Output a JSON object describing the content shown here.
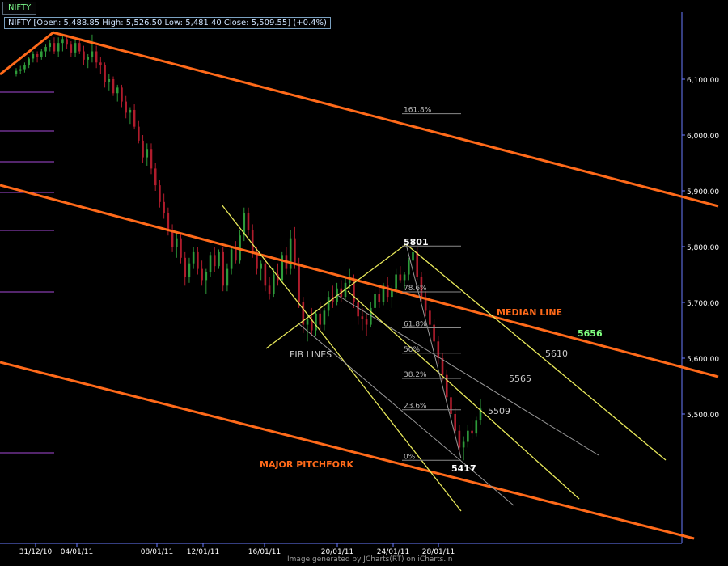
{
  "tab": {
    "label": "NIFTY"
  },
  "infobox": {
    "text": "NIFTY [Open: 5,488.85  High: 5,526.50  Low: 5,481.40  Close: 5,509.55] (+0.4%)"
  },
  "footer": "Image generated by JCharts(RT) on iCharts.in",
  "colors": {
    "background": "#000000",
    "up_candle": "#2e9b3a",
    "down_candle": "#b01c2c",
    "pitchfork": "#ff6a1a",
    "fib_channel": "#e8e85a",
    "fib_inner": "#9a9a9a",
    "grid_axis": "#6a7cff",
    "level_marks": "#a64ad8"
  },
  "chart_data": {
    "type": "candlestick",
    "symbol": "NIFTY",
    "yaxis": {
      "ticks": [
        "6,100.00",
        "6,000.00",
        "5,900.00",
        "5,800.00",
        "5,700.00",
        "5,600.00",
        "5,500.00"
      ],
      "tick_values": [
        6100,
        6000,
        5900,
        5800,
        5700,
        5600,
        5500
      ],
      "range": [
        5260,
        6180
      ]
    },
    "xaxis": {
      "ticks": [
        "31/12/10",
        "04/01/11",
        "08/01/11",
        "12/01/11",
        "16/01/11",
        "20/01/11",
        "24/01/11",
        "28/01/11"
      ]
    },
    "candles": [
      {
        "o": 6110,
        "h": 6120,
        "l": 6105,
        "c": 6115
      },
      {
        "o": 6115,
        "h": 6124,
        "l": 6110,
        "c": 6118
      },
      {
        "o": 6118,
        "h": 6130,
        "l": 6112,
        "c": 6125
      },
      {
        "o": 6125,
        "h": 6140,
        "l": 6120,
        "c": 6137
      },
      {
        "o": 6137,
        "h": 6150,
        "l": 6130,
        "c": 6145
      },
      {
        "o": 6145,
        "h": 6150,
        "l": 6130,
        "c": 6140
      },
      {
        "o": 6140,
        "h": 6155,
        "l": 6135,
        "c": 6150
      },
      {
        "o": 6150,
        "h": 6162,
        "l": 6140,
        "c": 6158
      },
      {
        "o": 6158,
        "h": 6170,
        "l": 6150,
        "c": 6165
      },
      {
        "o": 6165,
        "h": 6175,
        "l": 6145,
        "c": 6150
      },
      {
        "o": 6150,
        "h": 6175,
        "l": 6140,
        "c": 6165
      },
      {
        "o": 6165,
        "h": 6180,
        "l": 6150,
        "c": 6172
      },
      {
        "o": 6172,
        "h": 6180,
        "l": 6155,
        "c": 6162
      },
      {
        "o": 6162,
        "h": 6168,
        "l": 6140,
        "c": 6148
      },
      {
        "o": 6148,
        "h": 6170,
        "l": 6140,
        "c": 6165
      },
      {
        "o": 6165,
        "h": 6172,
        "l": 6145,
        "c": 6150
      },
      {
        "o": 6150,
        "h": 6160,
        "l": 6125,
        "c": 6135
      },
      {
        "o": 6135,
        "h": 6145,
        "l": 6120,
        "c": 6140
      },
      {
        "o": 6140,
        "h": 6180,
        "l": 6130,
        "c": 6150
      },
      {
        "o": 6150,
        "h": 6160,
        "l": 6120,
        "c": 6130
      },
      {
        "o": 6130,
        "h": 6140,
        "l": 6110,
        "c": 6125
      },
      {
        "o": 6125,
        "h": 6130,
        "l": 6085,
        "c": 6095
      },
      {
        "o": 6095,
        "h": 6110,
        "l": 6080,
        "c": 6100
      },
      {
        "o": 6100,
        "h": 6105,
        "l": 6070,
        "c": 6075
      },
      {
        "o": 6075,
        "h": 6090,
        "l": 6060,
        "c": 6085
      },
      {
        "o": 6085,
        "h": 6090,
        "l": 6050,
        "c": 6060
      },
      {
        "o": 6060,
        "h": 6070,
        "l": 6030,
        "c": 6040
      },
      {
        "o": 6040,
        "h": 6050,
        "l": 6020,
        "c": 6045
      },
      {
        "o": 6045,
        "h": 6055,
        "l": 6010,
        "c": 6015
      },
      {
        "o": 6015,
        "h": 6025,
        "l": 5985,
        "c": 5990
      },
      {
        "o": 5990,
        "h": 6000,
        "l": 5950,
        "c": 5960
      },
      {
        "o": 5960,
        "h": 5985,
        "l": 5945,
        "c": 5975
      },
      {
        "o": 5975,
        "h": 5985,
        "l": 5930,
        "c": 5940
      },
      {
        "o": 5940,
        "h": 5950,
        "l": 5900,
        "c": 5910
      },
      {
        "o": 5910,
        "h": 5920,
        "l": 5870,
        "c": 5880
      },
      {
        "o": 5880,
        "h": 5895,
        "l": 5850,
        "c": 5860
      },
      {
        "o": 5860,
        "h": 5870,
        "l": 5820,
        "c": 5830
      },
      {
        "o": 5830,
        "h": 5840,
        "l": 5790,
        "c": 5800
      },
      {
        "o": 5800,
        "h": 5825,
        "l": 5780,
        "c": 5815
      },
      {
        "o": 5815,
        "h": 5825,
        "l": 5770,
        "c": 5780
      },
      {
        "o": 5780,
        "h": 5790,
        "l": 5730,
        "c": 5745
      },
      {
        "o": 5745,
        "h": 5780,
        "l": 5735,
        "c": 5770
      },
      {
        "o": 5770,
        "h": 5800,
        "l": 5760,
        "c": 5790
      },
      {
        "o": 5790,
        "h": 5800,
        "l": 5750,
        "c": 5760
      },
      {
        "o": 5760,
        "h": 5775,
        "l": 5730,
        "c": 5740
      },
      {
        "o": 5740,
        "h": 5760,
        "l": 5715,
        "c": 5755
      },
      {
        "o": 5755,
        "h": 5790,
        "l": 5745,
        "c": 5785
      },
      {
        "o": 5785,
        "h": 5800,
        "l": 5755,
        "c": 5765
      },
      {
        "o": 5765,
        "h": 5795,
        "l": 5760,
        "c": 5790
      },
      {
        "o": 5790,
        "h": 5800,
        "l": 5720,
        "c": 5730
      },
      {
        "o": 5730,
        "h": 5770,
        "l": 5720,
        "c": 5760
      },
      {
        "o": 5760,
        "h": 5800,
        "l": 5750,
        "c": 5795
      },
      {
        "o": 5795,
        "h": 5810,
        "l": 5770,
        "c": 5775
      },
      {
        "o": 5775,
        "h": 5830,
        "l": 5770,
        "c": 5820
      },
      {
        "o": 5820,
        "h": 5870,
        "l": 5810,
        "c": 5860
      },
      {
        "o": 5860,
        "h": 5870,
        "l": 5820,
        "c": 5830
      },
      {
        "o": 5830,
        "h": 5840,
        "l": 5780,
        "c": 5790
      },
      {
        "o": 5790,
        "h": 5800,
        "l": 5750,
        "c": 5760
      },
      {
        "o": 5760,
        "h": 5775,
        "l": 5740,
        "c": 5770
      },
      {
        "o": 5770,
        "h": 5780,
        "l": 5720,
        "c": 5730
      },
      {
        "o": 5730,
        "h": 5745,
        "l": 5705,
        "c": 5715
      },
      {
        "o": 5715,
        "h": 5760,
        "l": 5710,
        "c": 5750
      },
      {
        "o": 5750,
        "h": 5770,
        "l": 5730,
        "c": 5740
      },
      {
        "o": 5740,
        "h": 5790,
        "l": 5735,
        "c": 5785
      },
      {
        "o": 5785,
        "h": 5800,
        "l": 5750,
        "c": 5760
      },
      {
        "o": 5760,
        "h": 5830,
        "l": 5750,
        "c": 5815
      },
      {
        "o": 5815,
        "h": 5835,
        "l": 5760,
        "c": 5770
      },
      {
        "o": 5770,
        "h": 5780,
        "l": 5690,
        "c": 5700
      },
      {
        "o": 5700,
        "h": 5710,
        "l": 5645,
        "c": 5660
      },
      {
        "o": 5660,
        "h": 5680,
        "l": 5630,
        "c": 5670
      },
      {
        "o": 5670,
        "h": 5690,
        "l": 5640,
        "c": 5650
      },
      {
        "o": 5650,
        "h": 5685,
        "l": 5640,
        "c": 5680
      },
      {
        "o": 5680,
        "h": 5700,
        "l": 5650,
        "c": 5660
      },
      {
        "o": 5660,
        "h": 5690,
        "l": 5650,
        "c": 5685
      },
      {
        "o": 5685,
        "h": 5720,
        "l": 5675,
        "c": 5710
      },
      {
        "o": 5710,
        "h": 5730,
        "l": 5690,
        "c": 5700
      },
      {
        "o": 5700,
        "h": 5735,
        "l": 5695,
        "c": 5725
      },
      {
        "o": 5725,
        "h": 5740,
        "l": 5700,
        "c": 5710
      },
      {
        "o": 5710,
        "h": 5745,
        "l": 5705,
        "c": 5735
      },
      {
        "o": 5735,
        "h": 5760,
        "l": 5725,
        "c": 5740
      },
      {
        "o": 5740,
        "h": 5750,
        "l": 5690,
        "c": 5700
      },
      {
        "o": 5700,
        "h": 5710,
        "l": 5660,
        "c": 5675
      },
      {
        "o": 5675,
        "h": 5690,
        "l": 5650,
        "c": 5670
      },
      {
        "o": 5670,
        "h": 5680,
        "l": 5640,
        "c": 5660
      },
      {
        "o": 5660,
        "h": 5700,
        "l": 5655,
        "c": 5690
      },
      {
        "o": 5690,
        "h": 5725,
        "l": 5680,
        "c": 5715
      },
      {
        "o": 5715,
        "h": 5730,
        "l": 5690,
        "c": 5700
      },
      {
        "o": 5700,
        "h": 5735,
        "l": 5695,
        "c": 5730
      },
      {
        "o": 5730,
        "h": 5745,
        "l": 5700,
        "c": 5710
      },
      {
        "o": 5710,
        "h": 5730,
        "l": 5690,
        "c": 5725
      },
      {
        "o": 5725,
        "h": 5760,
        "l": 5715,
        "c": 5750
      },
      {
        "o": 5750,
        "h": 5765,
        "l": 5735,
        "c": 5740
      },
      {
        "o": 5740,
        "h": 5755,
        "l": 5725,
        "c": 5750
      },
      {
        "o": 5750,
        "h": 5780,
        "l": 5740,
        "c": 5775
      },
      {
        "o": 5775,
        "h": 5801,
        "l": 5765,
        "c": 5790
      },
      {
        "o": 5790,
        "h": 5800,
        "l": 5740,
        "c": 5745
      },
      {
        "o": 5745,
        "h": 5755,
        "l": 5700,
        "c": 5710
      },
      {
        "o": 5710,
        "h": 5720,
        "l": 5675,
        "c": 5685
      },
      {
        "o": 5685,
        "h": 5695,
        "l": 5650,
        "c": 5660
      },
      {
        "o": 5660,
        "h": 5670,
        "l": 5620,
        "c": 5630
      },
      {
        "o": 5630,
        "h": 5640,
        "l": 5590,
        "c": 5600
      },
      {
        "o": 5600,
        "h": 5610,
        "l": 5560,
        "c": 5570
      },
      {
        "o": 5570,
        "h": 5580,
        "l": 5520,
        "c": 5530
      },
      {
        "o": 5530,
        "h": 5540,
        "l": 5490,
        "c": 5500
      },
      {
        "o": 5500,
        "h": 5510,
        "l": 5460,
        "c": 5470
      },
      {
        "o": 5470,
        "h": 5480,
        "l": 5430,
        "c": 5440
      },
      {
        "o": 5440,
        "h": 5460,
        "l": 5417,
        "c": 5450
      },
      {
        "o": 5450,
        "h": 5480,
        "l": 5440,
        "c": 5470
      },
      {
        "o": 5470,
        "h": 5490,
        "l": 5455,
        "c": 5465
      },
      {
        "o": 5465,
        "h": 5495,
        "l": 5460,
        "c": 5488
      },
      {
        "o": 5488.85,
        "h": 5526.5,
        "l": 5481.4,
        "c": 5509.55
      }
    ],
    "fibonacci": {
      "high": 5801,
      "low": 5417,
      "levels": [
        {
          "label": "161.8%",
          "pct": 1.618
        },
        {
          "label": "78.6%",
          "pct": 0.786
        },
        {
          "label": "61.8%",
          "pct": 0.618
        },
        {
          "label": "50%",
          "pct": 0.5
        },
        {
          "label": "38.2%",
          "pct": 0.382
        },
        {
          "label": "23.6%",
          "pct": 0.236
        },
        {
          "label": "0%",
          "pct": 0.0
        }
      ]
    },
    "annotations": {
      "high_label": "5801",
      "low_label": "5417",
      "median_label": "MEDIAN LINE",
      "median_value": "5656",
      "fib_lines_label": "FIB LINES",
      "pitchfork_label": "MAJOR PITCHFORK",
      "fib_values": [
        "5610",
        "5565",
        "5509"
      ]
    }
  }
}
